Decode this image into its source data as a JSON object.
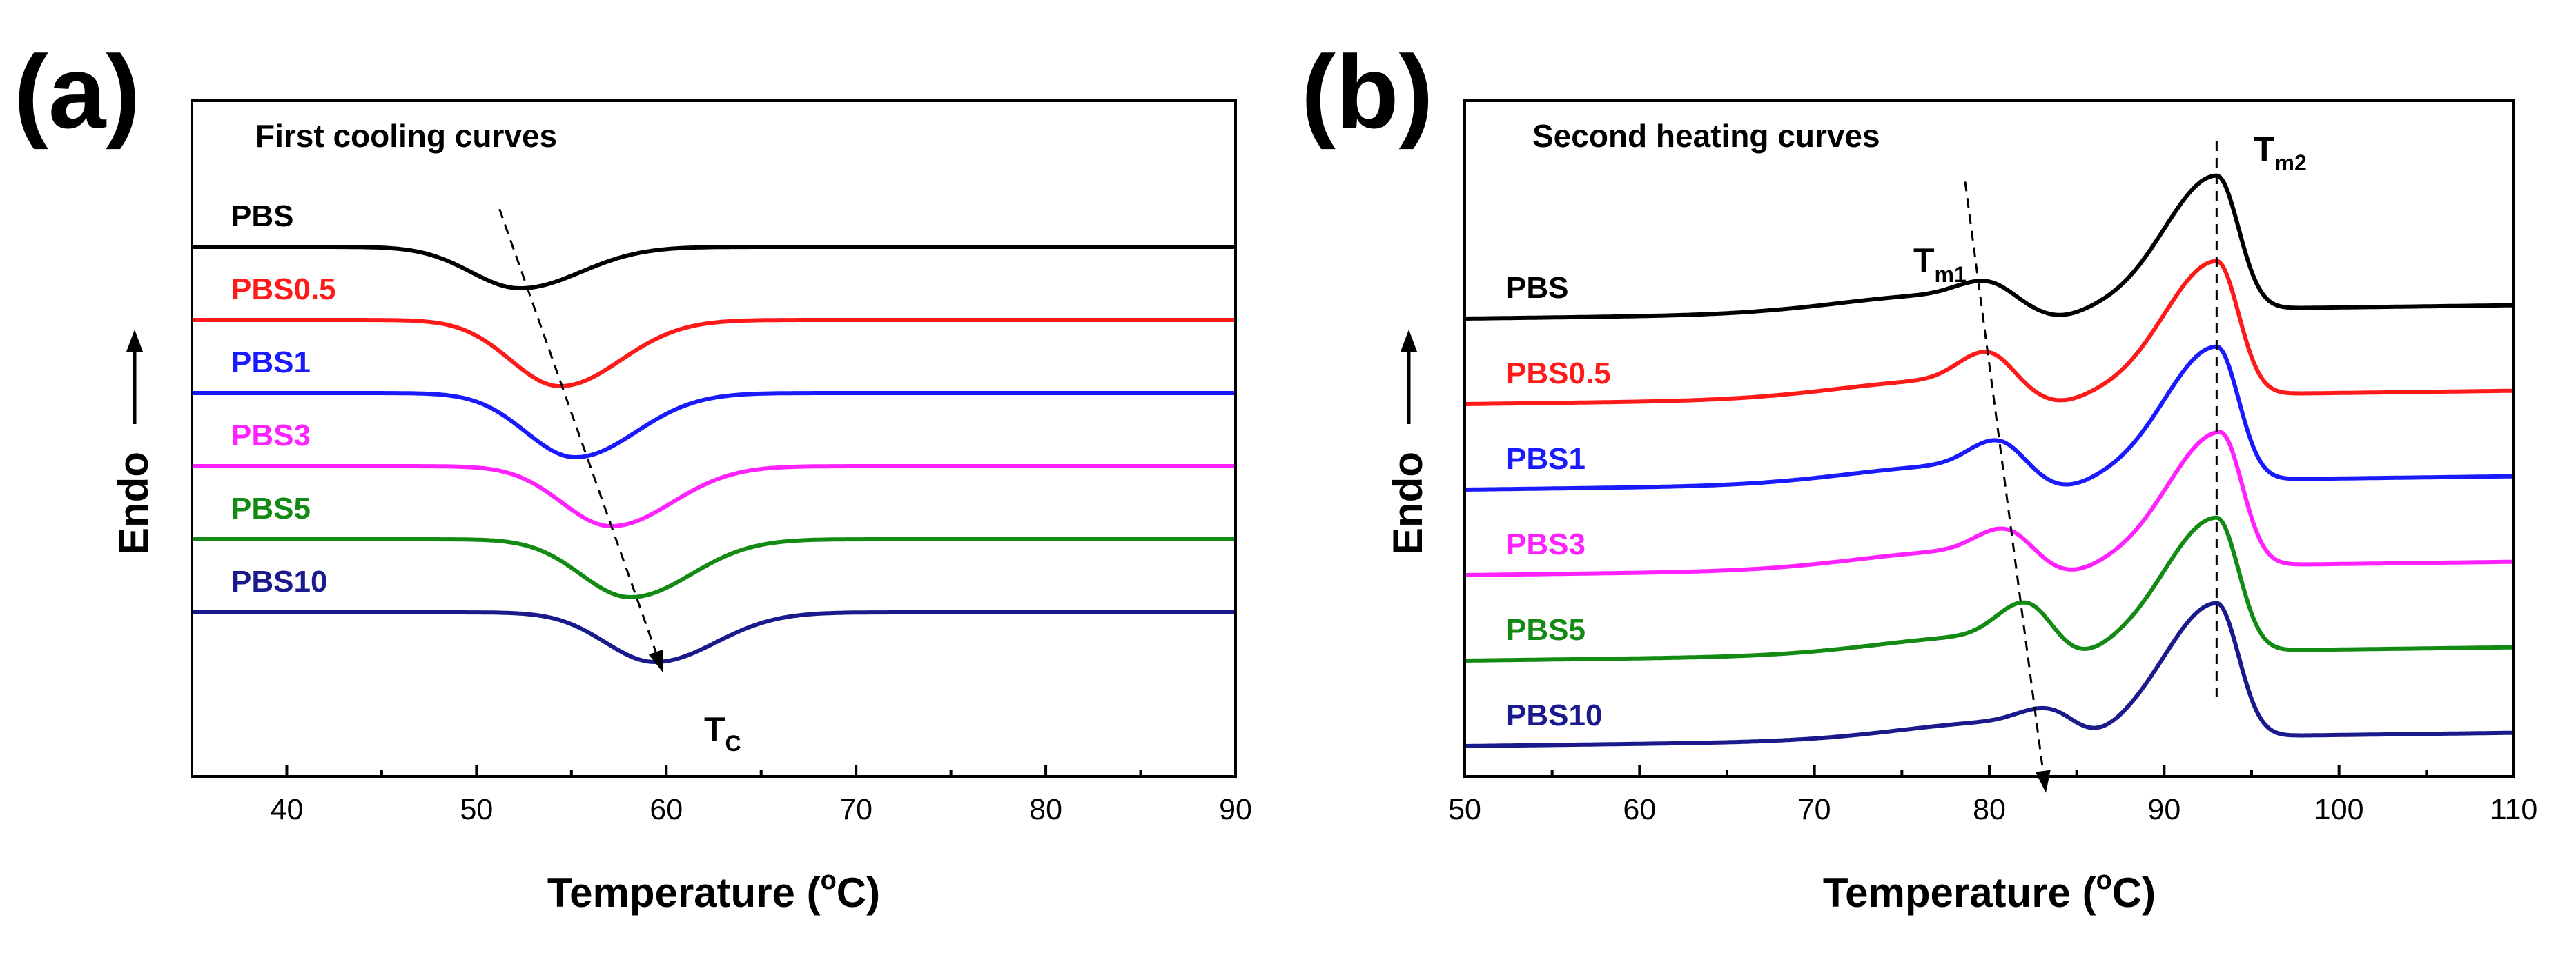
{
  "colors": {
    "black": "#000000",
    "red": "#ff1a1a",
    "blue": "#1a1aff",
    "magenta": "#ff22ff",
    "green": "#138a13",
    "navy": "#1a1a8c"
  },
  "chart_data": [
    {
      "type": "line",
      "panel_label": "(a)",
      "title": "First cooling curves",
      "xlabel": "Temperature (°C)",
      "xlabel_parts": {
        "prefix": "Temperature (",
        "sup": "o",
        "suffix": "C)"
      },
      "ylabel": "Endo",
      "xlim": [
        35,
        90
      ],
      "xticks": [
        40,
        50,
        60,
        70,
        80,
        90
      ],
      "yticks_shown": false,
      "annotation": {
        "text": "T",
        "sub": "C",
        "meaning": "crystallization peak temperature trend"
      },
      "series": [
        {
          "name": "PBS",
          "color": "#000000",
          "peak_temperature": 52.3,
          "peak_depth": 1.0,
          "baseline_rank": 0
        },
        {
          "name": "PBS0.5",
          "color": "#ff1a1a",
          "peak_temperature": 54.4,
          "peak_depth": 1.6,
          "baseline_rank": 1
        },
        {
          "name": "PBS1",
          "color": "#1a1aff",
          "peak_temperature": 55.2,
          "peak_depth": 1.55,
          "baseline_rank": 2
        },
        {
          "name": "PBS3",
          "color": "#ff22ff",
          "peak_temperature": 57.1,
          "peak_depth": 1.45,
          "baseline_rank": 3
        },
        {
          "name": "PBS5",
          "color": "#138a13",
          "peak_temperature": 58.1,
          "peak_depth": 1.4,
          "baseline_rank": 4
        },
        {
          "name": "PBS10",
          "color": "#1a1a8c",
          "peak_temperature": 59.4,
          "peak_depth": 1.2,
          "baseline_rank": 5
        }
      ]
    },
    {
      "type": "line",
      "panel_label": "(b)",
      "title": "Second heating curves",
      "xlabel": "Temperature (°C)",
      "xlabel_parts": {
        "prefix": "Temperature (",
        "sup": "o",
        "suffix": "C)"
      },
      "ylabel": "Endo",
      "xlim": [
        50,
        110
      ],
      "xticks": [
        50,
        60,
        70,
        80,
        90,
        100,
        110
      ],
      "yticks_shown": false,
      "annotations": [
        {
          "text": "T",
          "sub": "m1",
          "meaning": "lower melting peak trend"
        },
        {
          "text": "T",
          "sub": "m2",
          "meaning": "main melting peak at about 93 °C"
        }
      ],
      "tm2_reference": 93.0,
      "series": [
        {
          "name": "PBS",
          "color": "#000000",
          "tm1": 80.0,
          "tm2": 93.0,
          "baseline_rank": 0
        },
        {
          "name": "PBS0.5",
          "color": "#ff1a1a",
          "tm1": 80.0,
          "tm2": 93.0,
          "baseline_rank": 1
        },
        {
          "name": "PBS1",
          "color": "#1a1aff",
          "tm1": 80.6,
          "tm2": 93.0,
          "baseline_rank": 2
        },
        {
          "name": "PBS3",
          "color": "#ff22ff",
          "tm1": 81.0,
          "tm2": 93.2,
          "baseline_rank": 3
        },
        {
          "name": "PBS5",
          "color": "#138a13",
          "tm1": 82.2,
          "tm2": 93.0,
          "baseline_rank": 4
        },
        {
          "name": "PBS10",
          "color": "#1a1a8c",
          "tm1": 83.6,
          "tm2": 93.0,
          "baseline_rank": 5
        }
      ]
    }
  ]
}
